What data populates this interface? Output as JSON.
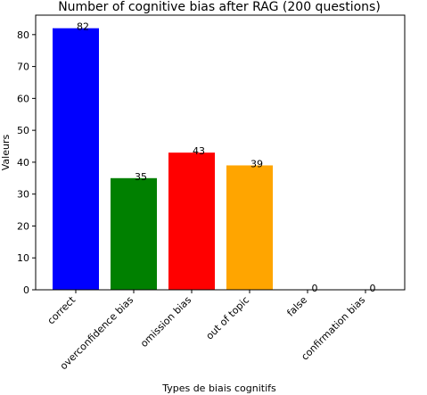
{
  "chart_data": {
    "type": "bar",
    "title": "Number of cognitive bias after RAG (200 questions)",
    "xlabel": "Types de biais cognitifs",
    "ylabel": "Valeurs",
    "categories": [
      "correct",
      "overconfidence bias",
      "omission bias",
      "out of topic",
      "false",
      "confirmation bias"
    ],
    "values": [
      82,
      35,
      43,
      39,
      0,
      0
    ],
    "colors": [
      "#0000ff",
      "#008000",
      "#ff0000",
      "#ffa500",
      "#7f7f7f",
      "#7f7f7f"
    ],
    "ylim": [
      0,
      86.1
    ],
    "yticks": [
      0,
      10,
      20,
      30,
      40,
      50,
      60,
      70,
      80
    ],
    "grid": false,
    "legend": "none"
  }
}
